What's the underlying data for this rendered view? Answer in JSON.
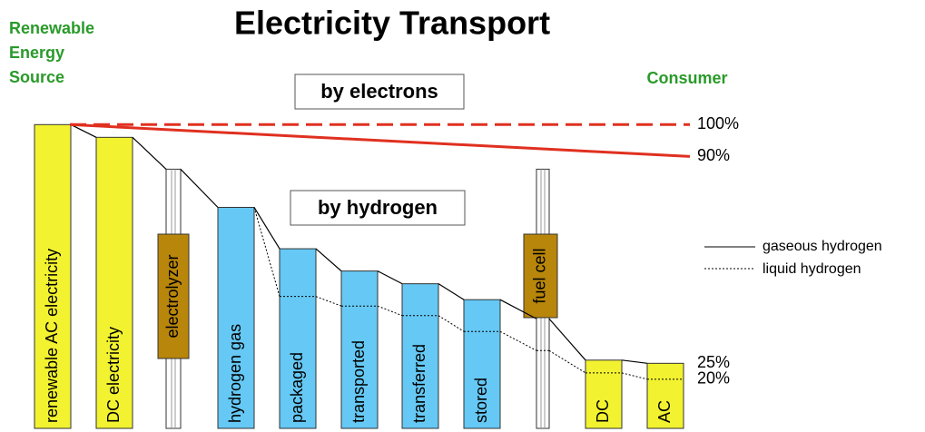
{
  "title": "Electricity Transport",
  "source_label": [
    "Renewable",
    "Energy",
    "Source"
  ],
  "consumer_label": "Consumer",
  "box_electrons": "by electrons",
  "box_hydrogen": "by hydrogen",
  "legend": [
    "gaseous hydrogen",
    "liquid hydrogen"
  ],
  "stages": [
    {
      "label": "renewable AC electricity",
      "level": 100,
      "kind": "bar",
      "color": "#f2f230"
    },
    {
      "label": "DC electricity",
      "level": 96,
      "kind": "bar",
      "color": "#f2f230"
    },
    {
      "label": "electrolyzer",
      "level": 86,
      "kind": "column",
      "color": "#b8860b"
    },
    {
      "label": "hydrogen gas",
      "level": 74,
      "kind": "bar",
      "color": "#66c8f4"
    },
    {
      "label": "packaged",
      "level": 61,
      "kind": "bar",
      "color": "#66c8f4"
    },
    {
      "label": "transported",
      "level": 54,
      "kind": "bar",
      "color": "#66c8f4"
    },
    {
      "label": "transferred",
      "level": 50,
      "kind": "bar",
      "color": "#66c8f4"
    },
    {
      "label": "stored",
      "level": 45,
      "kind": "bar",
      "color": "#66c8f4"
    },
    {
      "label": "fuel cell",
      "level": 86,
      "kind": "column",
      "color": "#b8860b"
    },
    {
      "label": "DC",
      "level": 26,
      "kind": "bar",
      "color": "#f2f230"
    },
    {
      "label": "AC",
      "level": 25,
      "kind": "bar",
      "color": "#f2f230"
    }
  ],
  "gaseous": [
    100,
    96,
    86,
    74,
    61,
    54,
    50,
    45,
    39,
    26,
    25
  ],
  "liquid": [
    null,
    null,
    null,
    74,
    46,
    43,
    40,
    35,
    29,
    22,
    20
  ],
  "electrons": [
    100,
    90
  ],
  "ticks": [
    {
      "value": 100,
      "label": "100%"
    },
    {
      "value": 90,
      "label": "90%"
    },
    {
      "value": 25,
      "label": "25%"
    },
    {
      "value": 20,
      "label": "20%"
    }
  ]
}
